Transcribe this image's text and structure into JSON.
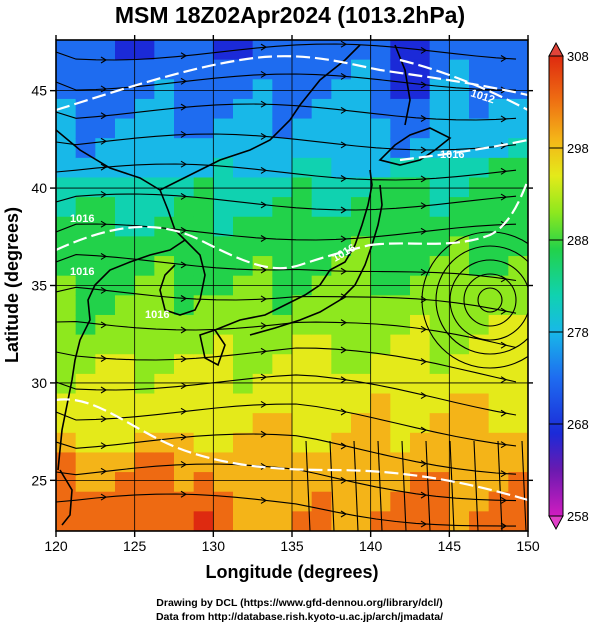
{
  "title": "MSM 18Z02Apr2024 (1013.2hPa)",
  "xaxis": {
    "label": "Longitude (degrees)",
    "ticks": [
      "120",
      "125",
      "130",
      "135",
      "140",
      "145",
      "150"
    ],
    "range": [
      120,
      150
    ]
  },
  "yaxis": {
    "label": "Latitude  (degrees)",
    "ticks": [
      "25",
      "30",
      "35",
      "40",
      "45"
    ],
    "range": [
      22.4,
      47.6
    ]
  },
  "colorbar": {
    "ticks": [
      "258",
      "268",
      "278",
      "288",
      "298",
      "308"
    ],
    "range": [
      258,
      308
    ],
    "colors": [
      "#d01cc0",
      "#6a1ab0",
      "#1b2ad8",
      "#1e6cf0",
      "#18b8e8",
      "#10d2b0",
      "#22d24a",
      "#8ee81e",
      "#e4ea1a",
      "#f4b418",
      "#ee6a12",
      "#de2a10"
    ]
  },
  "isobar_labels": [
    "1012",
    "1016",
    "1016",
    "1016",
    "1016",
    "1016"
  ],
  "credits": {
    "line1": "Drawing by DCL (https://www.gfd-dennou.org/library/dcl/)",
    "line2": "Data from http://database.rish.kyoto-u.ac.jp/arch/jmadata/"
  }
}
